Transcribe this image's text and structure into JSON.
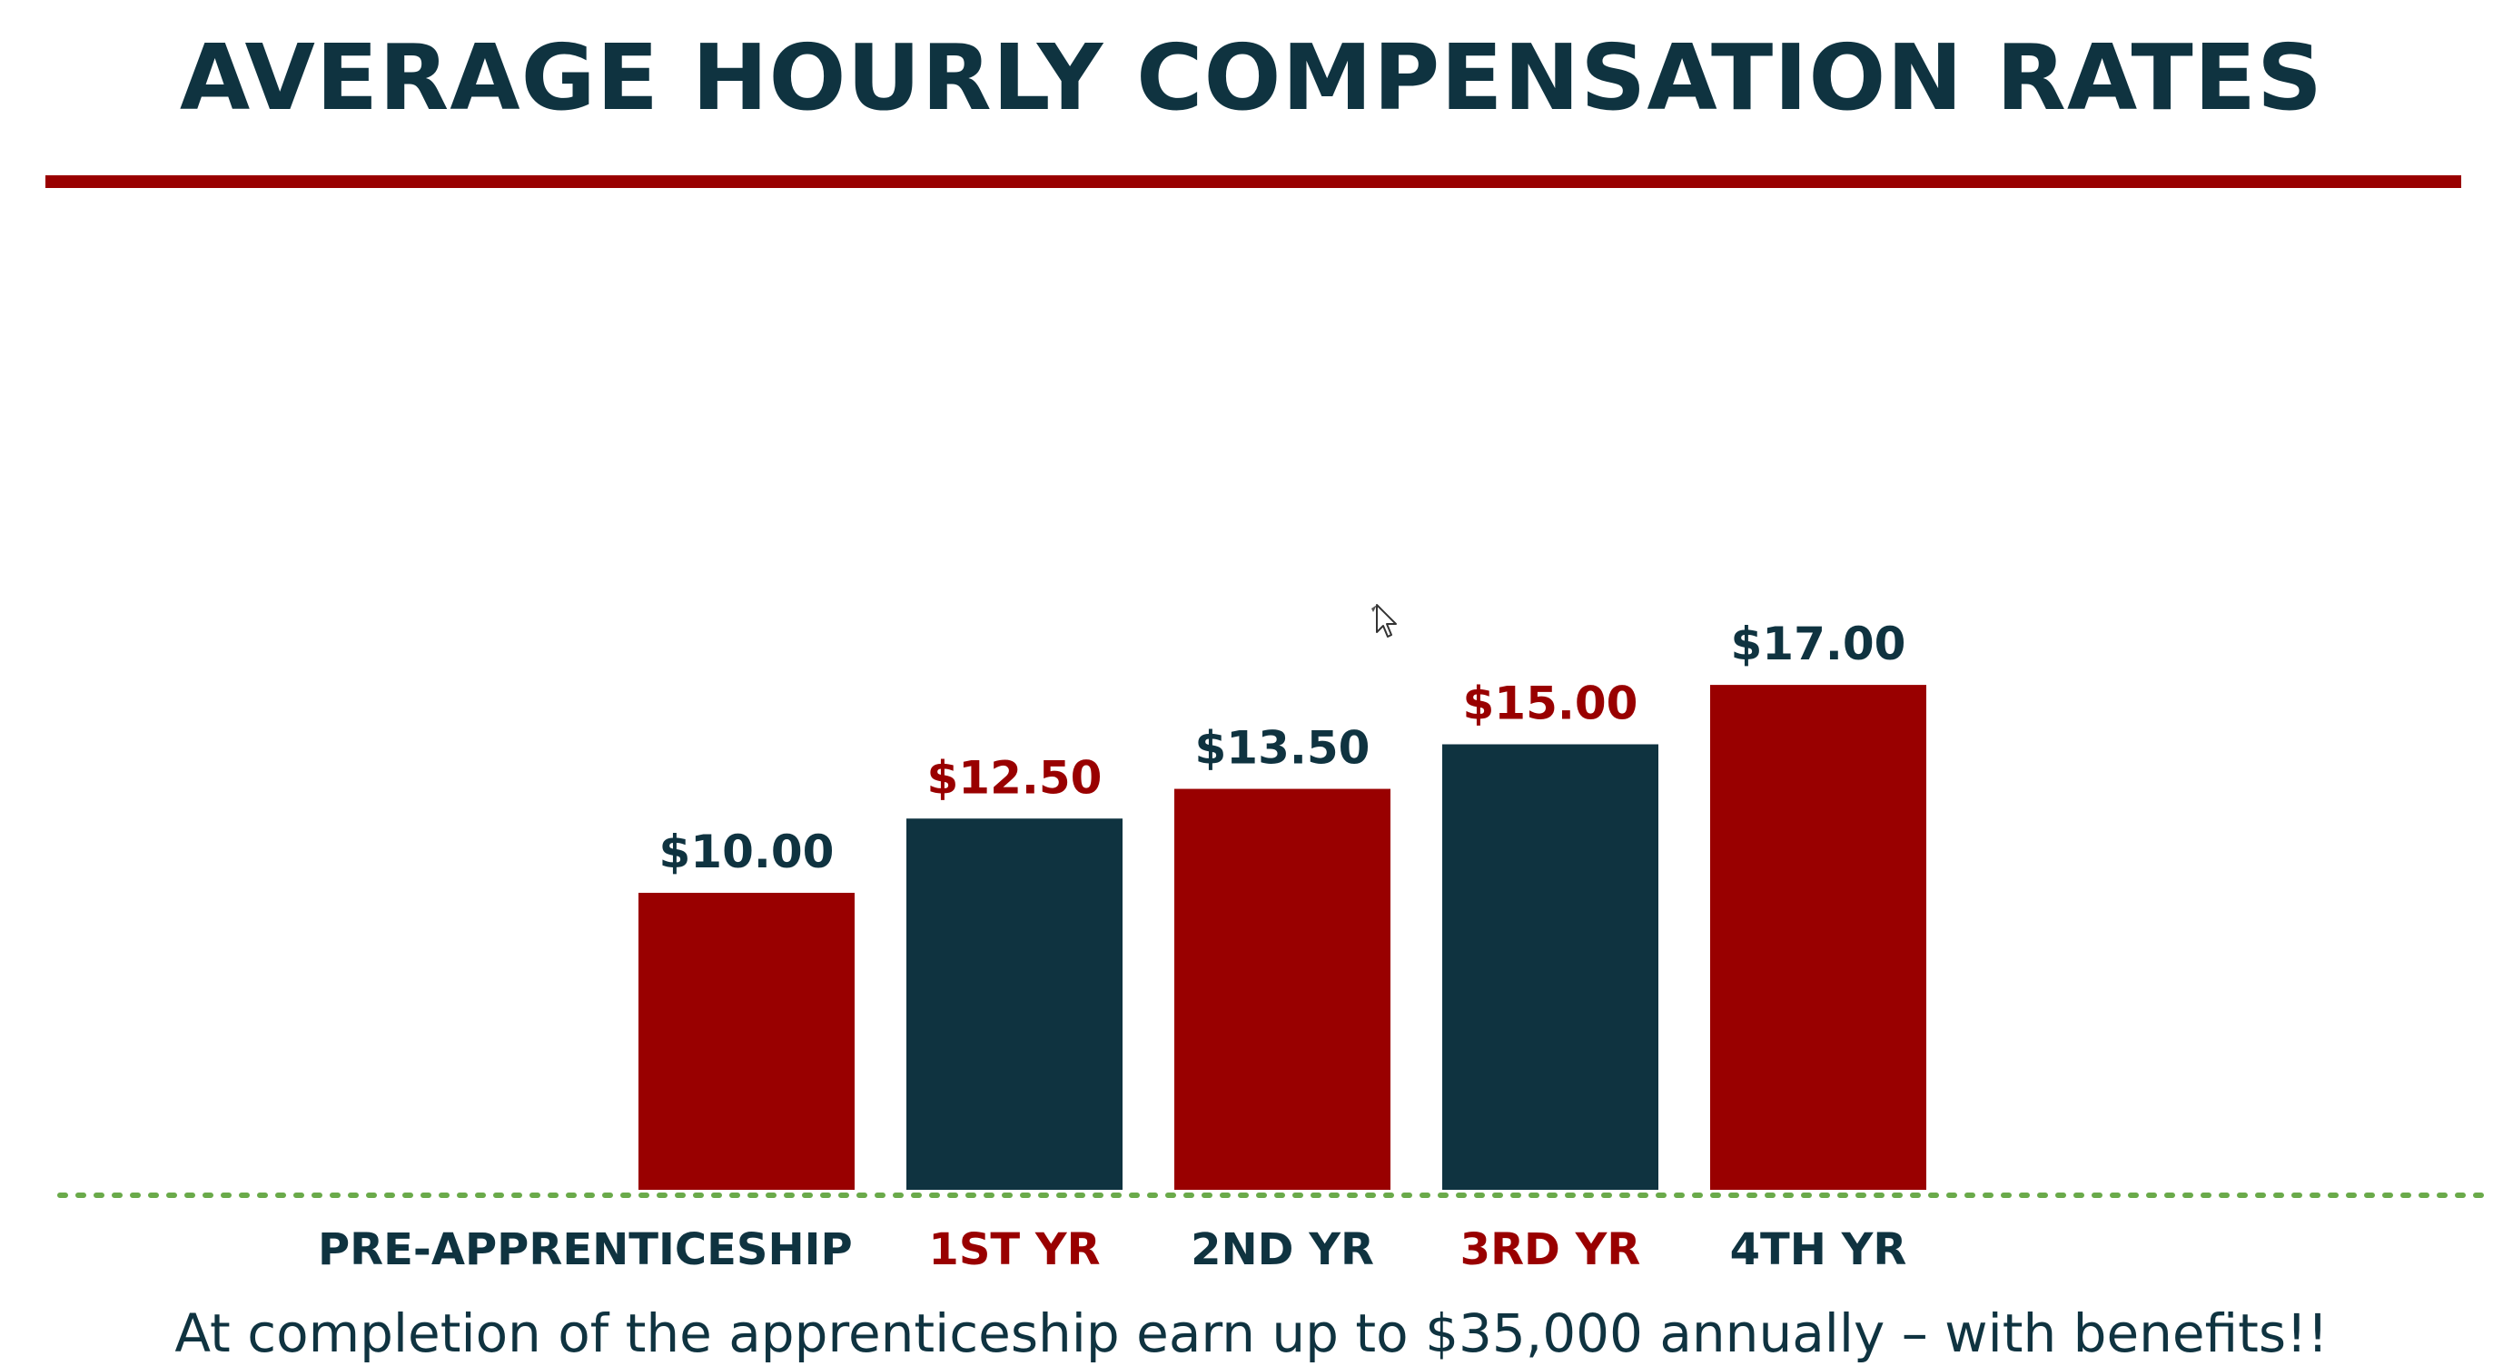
{
  "title": "AVERAGE HOURLY COMPENSATION RATES",
  "footer": "At completion of the apprenticeship earn up to $35,000 annually – with benefits!!",
  "colors": {
    "red": "#990000",
    "navy": "#0f3340",
    "baseline": "#6aaa4a"
  },
  "chart_data": {
    "type": "bar",
    "categories": [
      "PRE-APPRENTICESHIP",
      "1ST YR",
      "2ND YR",
      "3RD YR",
      "4TH YR"
    ],
    "values": [
      10.0,
      12.5,
      13.5,
      15.0,
      17.0
    ],
    "value_labels": [
      "$10.00",
      "$12.50",
      "$13.50",
      "$15.00",
      "$17.00"
    ],
    "bar_colors": [
      "#990000",
      "#0f3340",
      "#990000",
      "#0f3340",
      "#990000"
    ],
    "value_label_colors": [
      "#0f3340",
      "#990000",
      "#0f3340",
      "#990000",
      "#0f3340"
    ],
    "category_label_colors": [
      "#0f3340",
      "#990000",
      "#0f3340",
      "#990000",
      "#0f3340"
    ],
    "title": "AVERAGE HOURLY COMPENSATION RATES",
    "xlabel": "",
    "ylabel": "",
    "ylim": [
      0,
      18
    ],
    "grid": false,
    "legend": "none",
    "baseline_style": "dotted"
  }
}
